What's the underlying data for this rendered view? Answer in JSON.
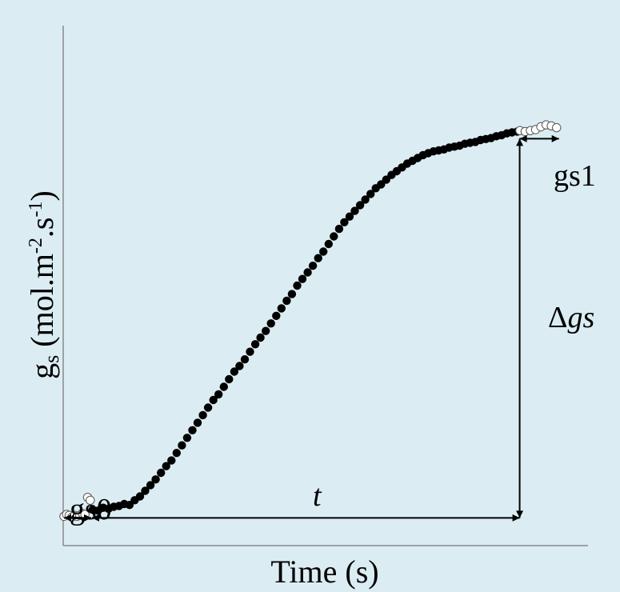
{
  "colors": {
    "background": "#dbedf3",
    "axis": "#8a8a8a",
    "ink": "#000000",
    "open_marker_fill": "#ffffff"
  },
  "labels": {
    "gs0": "gs0",
    "gs1": "gs1",
    "t": "t",
    "delta_gs_symbol": "Δ",
    "delta_gs_text": "gs"
  },
  "chart_data": {
    "type": "scatter",
    "title": "",
    "xlabel": "Time (s)",
    "ylabel_base": "g",
    "ylabel_sub": "s",
    "ylabel_unit_a": " (mol.m",
    "ylabel_sup_a": "-2",
    "ylabel_unit_b": ".s",
    "ylabel_sup_b": "-1",
    "ylabel_close": ")",
    "x_ticks": false,
    "y_ticks": false,
    "grid": false,
    "legend": "none",
    "annotations": {
      "gs0": "gs0",
      "gs1": "gs1",
      "t": "t",
      "delta_gs": "Δgs"
    },
    "series": [
      {
        "style": "open",
        "points": [
          [
            0,
            1
          ],
          [
            1,
            3
          ],
          [
            2,
            2
          ],
          [
            3,
            0
          ],
          [
            4,
            2
          ],
          [
            5,
            1
          ],
          [
            6,
            2
          ],
          [
            7,
            4
          ],
          [
            8,
            3
          ],
          [
            9,
            21
          ],
          [
            10,
            18
          ]
        ]
      },
      {
        "style": "filled",
        "points": [
          [
            11,
            8
          ],
          [
            13,
            7
          ],
          [
            15,
            10
          ],
          [
            17,
            9
          ],
          [
            19,
            11
          ],
          [
            21,
            12
          ],
          [
            23,
            14
          ],
          [
            25,
            13
          ],
          [
            27,
            18
          ],
          [
            29,
            22
          ],
          [
            31,
            28
          ],
          [
            33,
            34
          ],
          [
            35,
            40
          ],
          [
            37,
            47
          ],
          [
            39,
            54
          ],
          [
            41,
            60
          ],
          [
            43,
            68
          ],
          [
            45,
            76
          ],
          [
            47,
            84
          ],
          [
            49,
            92
          ],
          [
            51,
            100
          ],
          [
            53,
            108
          ],
          [
            55,
            116
          ],
          [
            57,
            124
          ],
          [
            59,
            130
          ],
          [
            61,
            138
          ],
          [
            63,
            146
          ],
          [
            65,
            154
          ],
          [
            67,
            160
          ],
          [
            69,
            167
          ],
          [
            71,
            175
          ],
          [
            73,
            183
          ],
          [
            75,
            190
          ],
          [
            77,
            197
          ],
          [
            79,
            205
          ],
          [
            81,
            213
          ],
          [
            83,
            221
          ],
          [
            85,
            229
          ],
          [
            87,
            236
          ],
          [
            89,
            245
          ],
          [
            91,
            252
          ],
          [
            93,
            259
          ],
          [
            95,
            266
          ],
          [
            97,
            274
          ],
          [
            99,
            281
          ],
          [
            101,
            289
          ],
          [
            103,
            297
          ],
          [
            105,
            305
          ],
          [
            107,
            312
          ],
          [
            109,
            318
          ],
          [
            111,
            324
          ],
          [
            113,
            330
          ],
          [
            115,
            336
          ],
          [
            117,
            342
          ],
          [
            119,
            348
          ],
          [
            121,
            352
          ],
          [
            123,
            357
          ],
          [
            125,
            362
          ],
          [
            127,
            366
          ],
          [
            129,
            370
          ],
          [
            131,
            374
          ],
          [
            133,
            377
          ],
          [
            135,
            380
          ],
          [
            137,
            383
          ],
          [
            139,
            385
          ],
          [
            141,
            387
          ],
          [
            143,
            388
          ],
          [
            145,
            389
          ],
          [
            147,
            391
          ],
          [
            149,
            392
          ],
          [
            151,
            393
          ],
          [
            153,
            395
          ],
          [
            155,
            396
          ],
          [
            157,
            397
          ],
          [
            159,
            399
          ],
          [
            161,
            400
          ],
          [
            163,
            401
          ],
          [
            165,
            403
          ],
          [
            167,
            404
          ],
          [
            169,
            406
          ],
          [
            171,
            407
          ],
          [
            173,
            408
          ]
        ]
      },
      {
        "style": "open",
        "points": [
          [
            174,
            409
          ],
          [
            176,
            408
          ],
          [
            178,
            409
          ],
          [
            180,
            410
          ],
          [
            182,
            413
          ],
          [
            184,
            415
          ],
          [
            186,
            414
          ],
          [
            188,
            412
          ]
        ]
      }
    ],
    "xlim": [
      0,
      200
    ],
    "ylim": [
      -30,
      520
    ]
  }
}
